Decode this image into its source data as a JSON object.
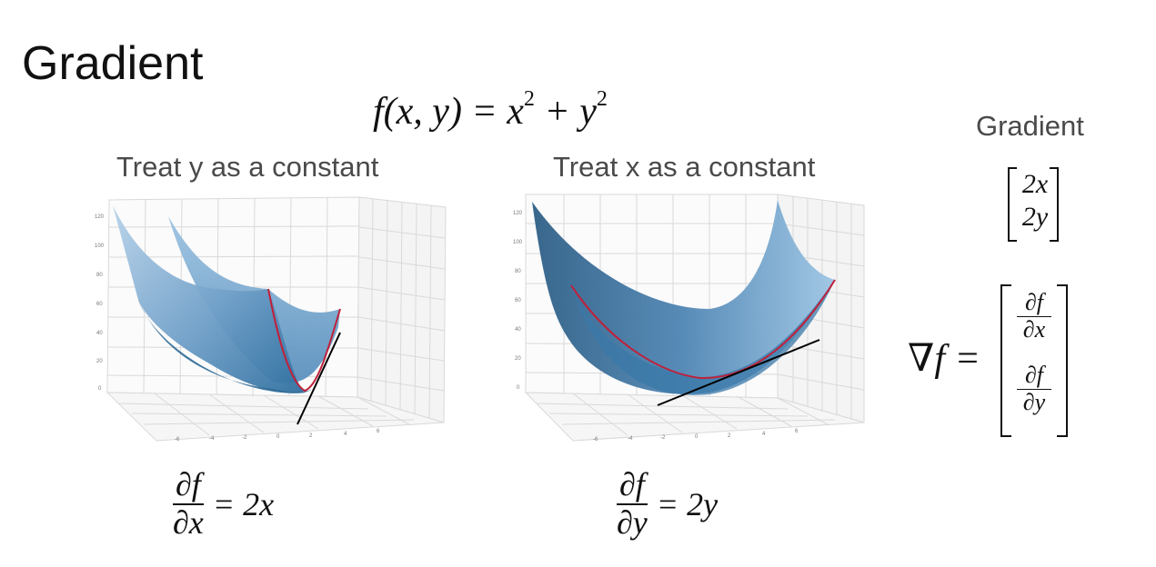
{
  "title": "Gradient",
  "function": {
    "lhs": "f(x, y) = x",
    "exp1": "2",
    "mid": " + y",
    "exp2": "2"
  },
  "left_panel": {
    "subtitle": "Treat y as a constant",
    "derivative": {
      "num": "∂f",
      "den": "∂x",
      "rhs": "= 2x"
    }
  },
  "middle_panel": {
    "subtitle": "Treat x as a constant",
    "derivative": {
      "num": "∂f",
      "den": "∂y",
      "rhs": "= 2y"
    }
  },
  "right_panel": {
    "label": "Gradient",
    "vector": [
      "2x",
      "2y"
    ],
    "nabla": "∇f =",
    "matrix": [
      {
        "num": "∂f",
        "den": "∂x"
      },
      {
        "num": "∂f",
        "den": "∂y"
      }
    ]
  },
  "plot_axes": {
    "z_ticks": [
      "120",
      "100",
      "80",
      "60",
      "40",
      "20",
      "0"
    ],
    "x_ticks": [
      "-6",
      "-4",
      "-2",
      "0",
      "2",
      "4",
      "6"
    ]
  },
  "colors": {
    "surface_light": "#a9cbe6",
    "surface_dark": "#2f6f9f",
    "slice_curve": "#c0203a",
    "tangent": "#000000",
    "grid": "#d6d6d6"
  }
}
